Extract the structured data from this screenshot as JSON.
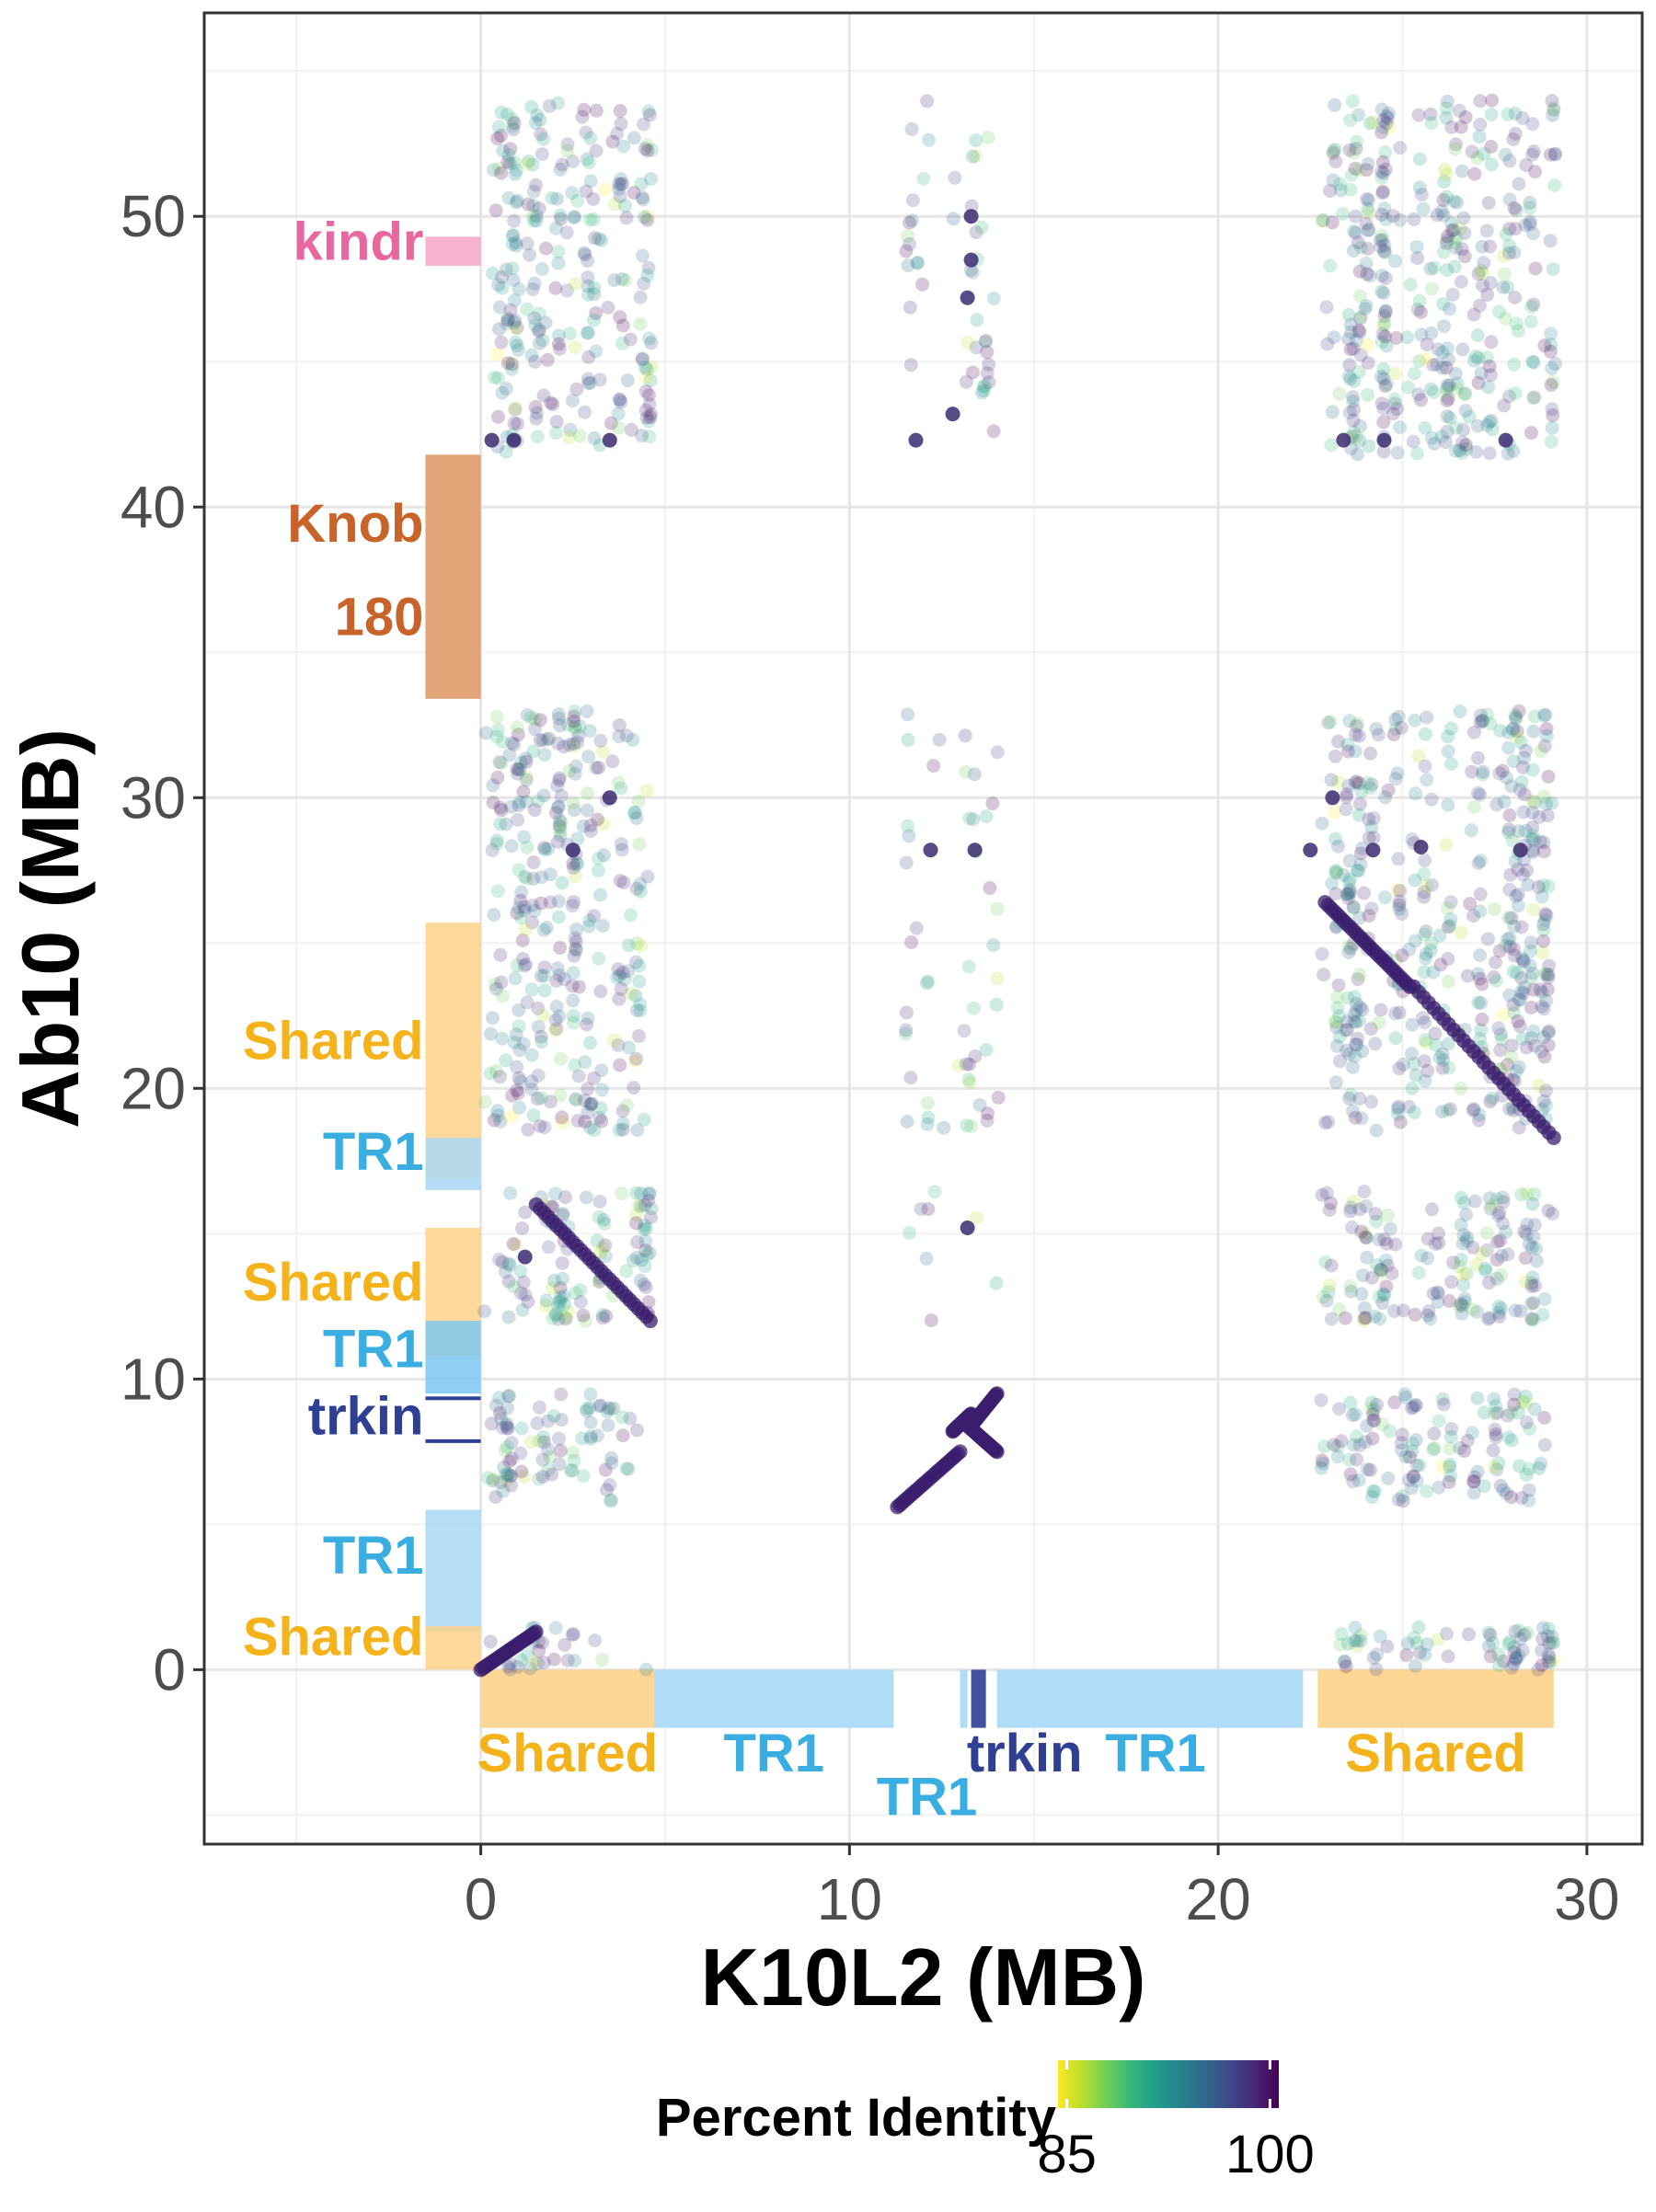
{
  "chart_data": {
    "type": "scatter",
    "title": "",
    "xlabel": "K10L2 (MB)",
    "ylabel": "Ab10 (MB)",
    "xlim": [
      -7.5,
      31.5
    ],
    "ylim": [
      -6,
      57
    ],
    "x_ticks": [
      0,
      10,
      20,
      30
    ],
    "y_ticks": [
      0,
      10,
      20,
      30,
      40,
      50
    ],
    "x_tick_labels": [
      "0",
      "10",
      "20",
      "30"
    ],
    "y_tick_labels": [
      "0",
      "10",
      "20",
      "30",
      "40",
      "50"
    ],
    "grid": true,
    "legend": {
      "title": "Percent Identity",
      "placement": "bottom",
      "scale": "viridis (reversed)",
      "range": [
        85,
        100
      ],
      "tick_labels": [
        "85",
        "100"
      ],
      "colors": [
        "#fde725",
        "#b5de2b",
        "#6ece58",
        "#35b779",
        "#1f9e89",
        "#26828e",
        "#31688e",
        "#3e4989",
        "#482878",
        "#440154"
      ]
    },
    "point_opacity": 0.22,
    "point_color_typical": "#3e4989",
    "y_annotations": [
      {
        "label": "kindr",
        "start": 48.3,
        "end": 49.3,
        "color": "#f4a6c8",
        "label_color": "#e8679f"
      },
      {
        "label": "Knob",
        "start": 33.4,
        "end": 41.8,
        "color": "#dd9560",
        "label_color": "#c8642a"
      },
      {
        "label": "180",
        "start": 33.4,
        "end": 41.8,
        "color": "#dd9560",
        "label_color": "#c8642a"
      },
      {
        "label": "Shared",
        "start": 16.9,
        "end": 25.7,
        "color": "#fbd28a",
        "label_color": "#f5b31b"
      },
      {
        "label": "TR1",
        "start": 16.5,
        "end": 18.3,
        "color": "#a8d8f5",
        "label_color": "#3aaee0"
      },
      {
        "label": "Shared",
        "start": 10.8,
        "end": 15.2,
        "color": "#fbd28a",
        "label_color": "#f5b31b"
      },
      {
        "label": "TR1",
        "start": 9.5,
        "end": 12,
        "color": "#7ec7f0",
        "label_color": "#3aaee0"
      },
      {
        "label": "trkin",
        "start": 7.8,
        "end": 9.4,
        "color": "#2e3f94",
        "label_color": "#2e3f94"
      },
      {
        "label": "TR1",
        "start": 1.3,
        "end": 5.5,
        "color": "#a8d8f5",
        "label_color": "#3aaee0"
      },
      {
        "label": "Shared",
        "start": 0,
        "end": 1.5,
        "color": "#fbd28a",
        "label_color": "#f5b31b"
      }
    ],
    "x_annotations": [
      {
        "label": "Shared",
        "start": 0,
        "end": 4.7,
        "color": "#fbd28a",
        "label_color": "#f5b31b"
      },
      {
        "label": "TR1",
        "start": 4.7,
        "end": 11.2,
        "color": "#a8d8f5",
        "label_color": "#3aaee0"
      },
      {
        "label": "TR1",
        "start": 13.0,
        "end": 13.2,
        "color": "#a8d8f5",
        "label_color": "#3aaee0"
      },
      {
        "label": "trkin",
        "start": 13.3,
        "end": 13.7,
        "color": "#2e3f94",
        "label_color": "#2e3f94"
      },
      {
        "label": "TR1",
        "start": 14.0,
        "end": 22.3,
        "color": "#a8d8f5",
        "label_color": "#3aaee0"
      },
      {
        "label": "Shared",
        "start": 22.7,
        "end": 29.1,
        "color": "#fbd28a",
        "label_color": "#f5b31b"
      }
    ],
    "point_clusters": [
      {
        "x": [
          0.3,
          4.6
        ],
        "y": [
          41.8,
          54
        ],
        "count": 260
      },
      {
        "x": [
          11.5,
          14
        ],
        "y": [
          42,
          54
        ],
        "count": 45
      },
      {
        "x": [
          22.8,
          29.1
        ],
        "y": [
          41.8,
          54
        ],
        "count": 380
      },
      {
        "x": [
          0.1,
          4.6
        ],
        "y": [
          18.5,
          33
        ],
        "count": 320
      },
      {
        "x": [
          11.5,
          14
        ],
        "y": [
          18.5,
          33
        ],
        "count": 50
      },
      {
        "x": [
          22.8,
          29.1
        ],
        "y": [
          18.5,
          33
        ],
        "count": 450
      },
      {
        "x": [
          0.1,
          4.6
        ],
        "y": [
          12,
          16.5
        ],
        "count": 110
      },
      {
        "x": [
          11.5,
          14
        ],
        "y": [
          12,
          16.5
        ],
        "count": 8
      },
      {
        "x": [
          22.8,
          29.1
        ],
        "y": [
          12,
          16.5
        ],
        "count": 160
      },
      {
        "x": [
          0.1,
          4.6
        ],
        "y": [
          5.8,
          9.5
        ],
        "count": 90
      },
      {
        "x": [
          22.8,
          29.1
        ],
        "y": [
          5.8,
          9.5
        ],
        "count": 130
      },
      {
        "x": [
          0.1,
          4.6
        ],
        "y": [
          0,
          1.5
        ],
        "count": 30
      },
      {
        "x": [
          22.8,
          29.1
        ],
        "y": [
          0,
          1.5
        ],
        "count": 70
      }
    ],
    "alignment_lines": [
      {
        "x": [
          0,
          1.5
        ],
        "y": [
          0,
          1.3
        ]
      },
      {
        "x": [
          1.5,
          4.6
        ],
        "y": [
          16,
          12
        ]
      },
      {
        "x": [
          11.3,
          13.0
        ],
        "y": [
          5.6,
          7.5
        ]
      },
      {
        "x": [
          12.8,
          13.3
        ],
        "y": [
          8.2,
          8.8
        ]
      },
      {
        "x": [
          13.3,
          14.0
        ],
        "y": [
          8.4,
          9.5
        ]
      },
      {
        "x": [
          13.2,
          14.0
        ],
        "y": [
          8.4,
          7.5
        ]
      },
      {
        "x": [
          22.9,
          25.2
        ],
        "y": [
          26.4,
          23.5
        ]
      },
      {
        "x": [
          25.3,
          29.1
        ],
        "y": [
          23.5,
          18.3
        ]
      }
    ],
    "highlight_points": [
      {
        "x": 0.3,
        "y": 42.3
      },
      {
        "x": 0.9,
        "y": 42.3
      },
      {
        "x": 3.5,
        "y": 42.3
      },
      {
        "x": 23.4,
        "y": 42.3
      },
      {
        "x": 24.5,
        "y": 42.3
      },
      {
        "x": 27.8,
        "y": 42.3
      },
      {
        "x": 12.8,
        "y": 43.2
      },
      {
        "x": 11.8,
        "y": 42.3
      },
      {
        "x": 13.2,
        "y": 47.2
      },
      {
        "x": 13.3,
        "y": 48.5
      },
      {
        "x": 13.3,
        "y": 50
      },
      {
        "x": 2.5,
        "y": 28.2
      },
      {
        "x": 3.5,
        "y": 30
      },
      {
        "x": 12.2,
        "y": 28.2
      },
      {
        "x": 13.4,
        "y": 28.2
      },
      {
        "x": 22.5,
        "y": 28.2
      },
      {
        "x": 23.1,
        "y": 30
      },
      {
        "x": 25.5,
        "y": 28.3
      },
      {
        "x": 28.2,
        "y": 28.2
      },
      {
        "x": 13.2,
        "y": 15.2
      },
      {
        "x": 24.2,
        "y": 28.2
      },
      {
        "x": 1.2,
        "y": 14.2
      }
    ]
  }
}
